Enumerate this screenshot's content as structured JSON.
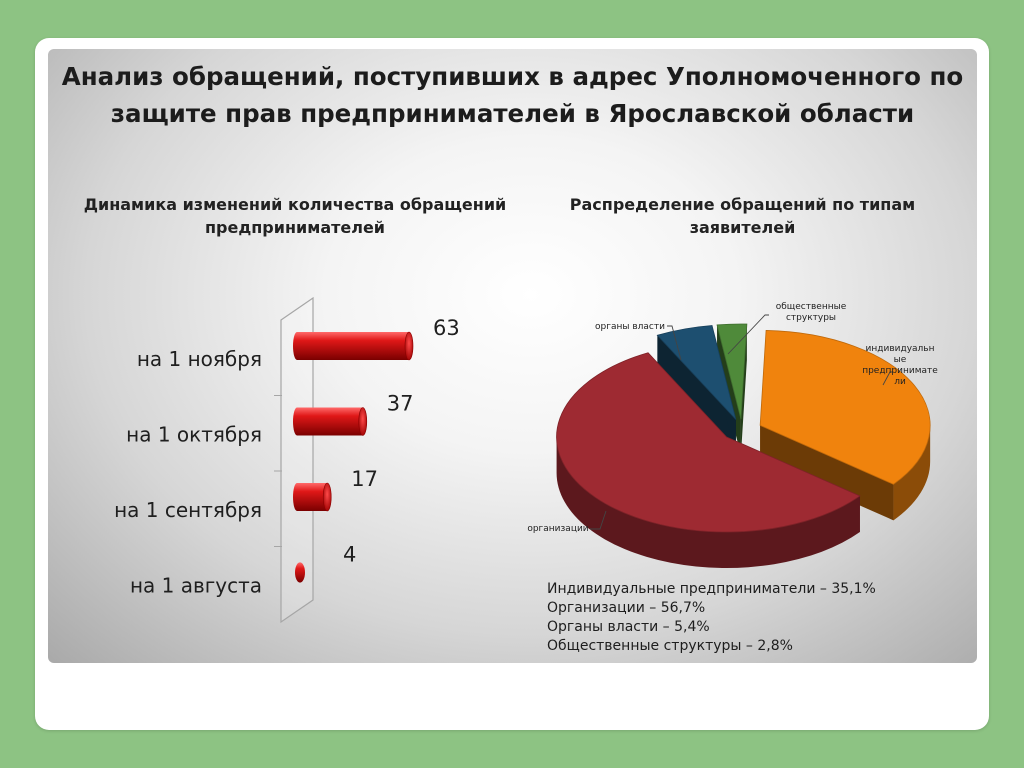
{
  "slide": {
    "title": "Анализ обращений, поступивших в адрес Уполномоченного по защите прав предпринимателей в Ярославской области"
  },
  "chart_data": [
    {
      "type": "bar",
      "orientation": "horizontal",
      "title": "Динамика изменений количества обращений предпринимателей",
      "categories": [
        "на 1 ноября",
        "на 1 октября",
        "на 1 сентября",
        "на 1 августа"
      ],
      "values": [
        63,
        37,
        17,
        4
      ],
      "data_labels": [
        "63",
        "37",
        "17",
        "4"
      ],
      "xlim": [
        0,
        63
      ],
      "color": "#d11a1a",
      "grid": false,
      "style": "3d-cylinder"
    },
    {
      "type": "pie",
      "style": "3d-exploded",
      "title": "Распределение обращений по типам заявителей",
      "slices": [
        {
          "label": "индивидуальные предприниматели",
          "value": 35.1,
          "color": "#f0830d"
        },
        {
          "label": "организации",
          "value": 56.7,
          "color": "#9e2a32"
        },
        {
          "label": "органы власти",
          "value": 5.4,
          "color": "#1d4f70"
        },
        {
          "label": "общественные структуры",
          "value": 2.8,
          "color": "#4f8a3a"
        }
      ]
    }
  ],
  "summary": [
    "Индивидуальные предприниматели – 35,1%",
    "Организации – 56,7%",
    "Органы власти – 5,4%",
    "Общественные структуры – 2,8%"
  ]
}
